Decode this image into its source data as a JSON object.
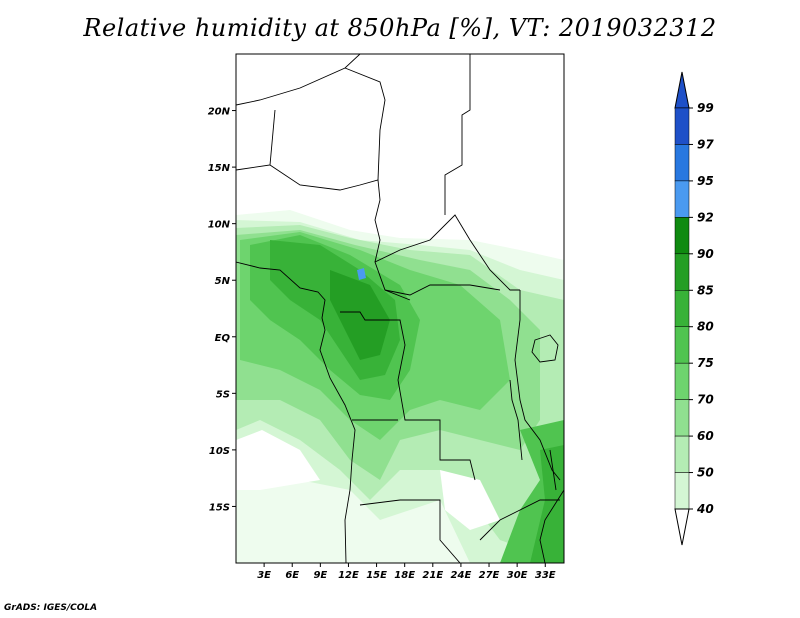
{
  "title": "Relative humidity at 850hPa [%], VT: 2019032312",
  "credit": "GrADS: IGES/COLA",
  "map": {
    "lat_labels": [
      "20N",
      "15N",
      "10N",
      "5N",
      "EQ",
      "5S",
      "10S",
      "15S"
    ],
    "lat_values": [
      20,
      15,
      10,
      5,
      0,
      -5,
      -10,
      -15
    ],
    "lon_labels": [
      "3E",
      "6E",
      "9E",
      "12E",
      "15E",
      "18E",
      "21E",
      "24E",
      "27E",
      "30E",
      "33E"
    ],
    "lon_values": [
      3,
      6,
      9,
      12,
      15,
      18,
      21,
      24,
      27,
      30,
      33
    ],
    "lat_range": [
      -20,
      25
    ],
    "lon_range": [
      0,
      35
    ]
  },
  "colorbar": {
    "levels": [
      "99",
      "97",
      "95",
      "92",
      "90",
      "85",
      "80",
      "75",
      "70",
      "60",
      "50",
      "40"
    ],
    "colors": [
      "#1e50c8",
      "#2878e0",
      "#4a9af0",
      "#0f8a10",
      "#249e24",
      "#38b238",
      "#50c450",
      "#6ed46e",
      "#90e090",
      "#b4ecb4",
      "#d4f6d4",
      "#eefcee"
    ]
  }
}
